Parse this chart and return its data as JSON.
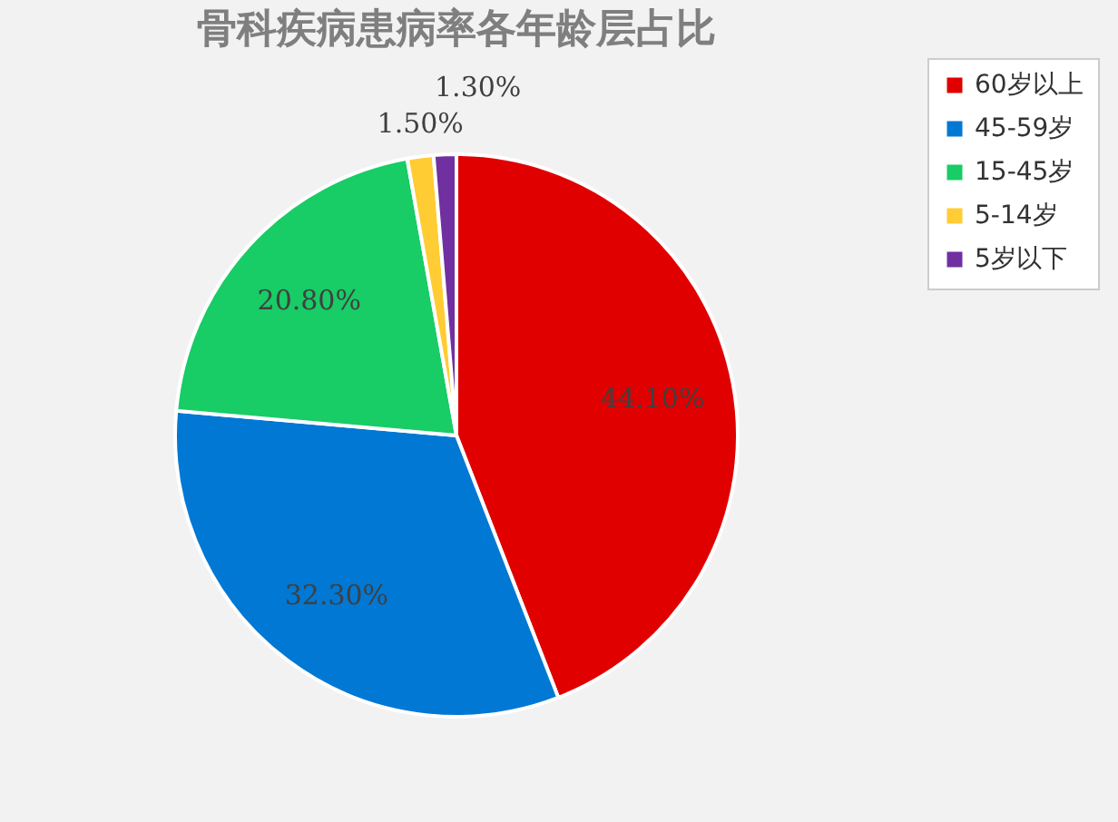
{
  "chart_data": {
    "type": "pie",
    "title": "骨科疾病患病率各年龄层占比",
    "categories": [
      "60岁以上",
      "45-59岁",
      "15-45岁",
      "5-14岁",
      "5岁以下"
    ],
    "values": [
      44.1,
      32.3,
      20.8,
      1.5,
      1.3
    ],
    "colors": [
      "#e00000",
      "#0078d4",
      "#18cc66",
      "#ffcc33",
      "#7030a0"
    ],
    "value_labels": [
      "44.10%",
      "32.30%",
      "20.80%",
      "1.50%",
      "1.30%"
    ],
    "legend": "right"
  }
}
